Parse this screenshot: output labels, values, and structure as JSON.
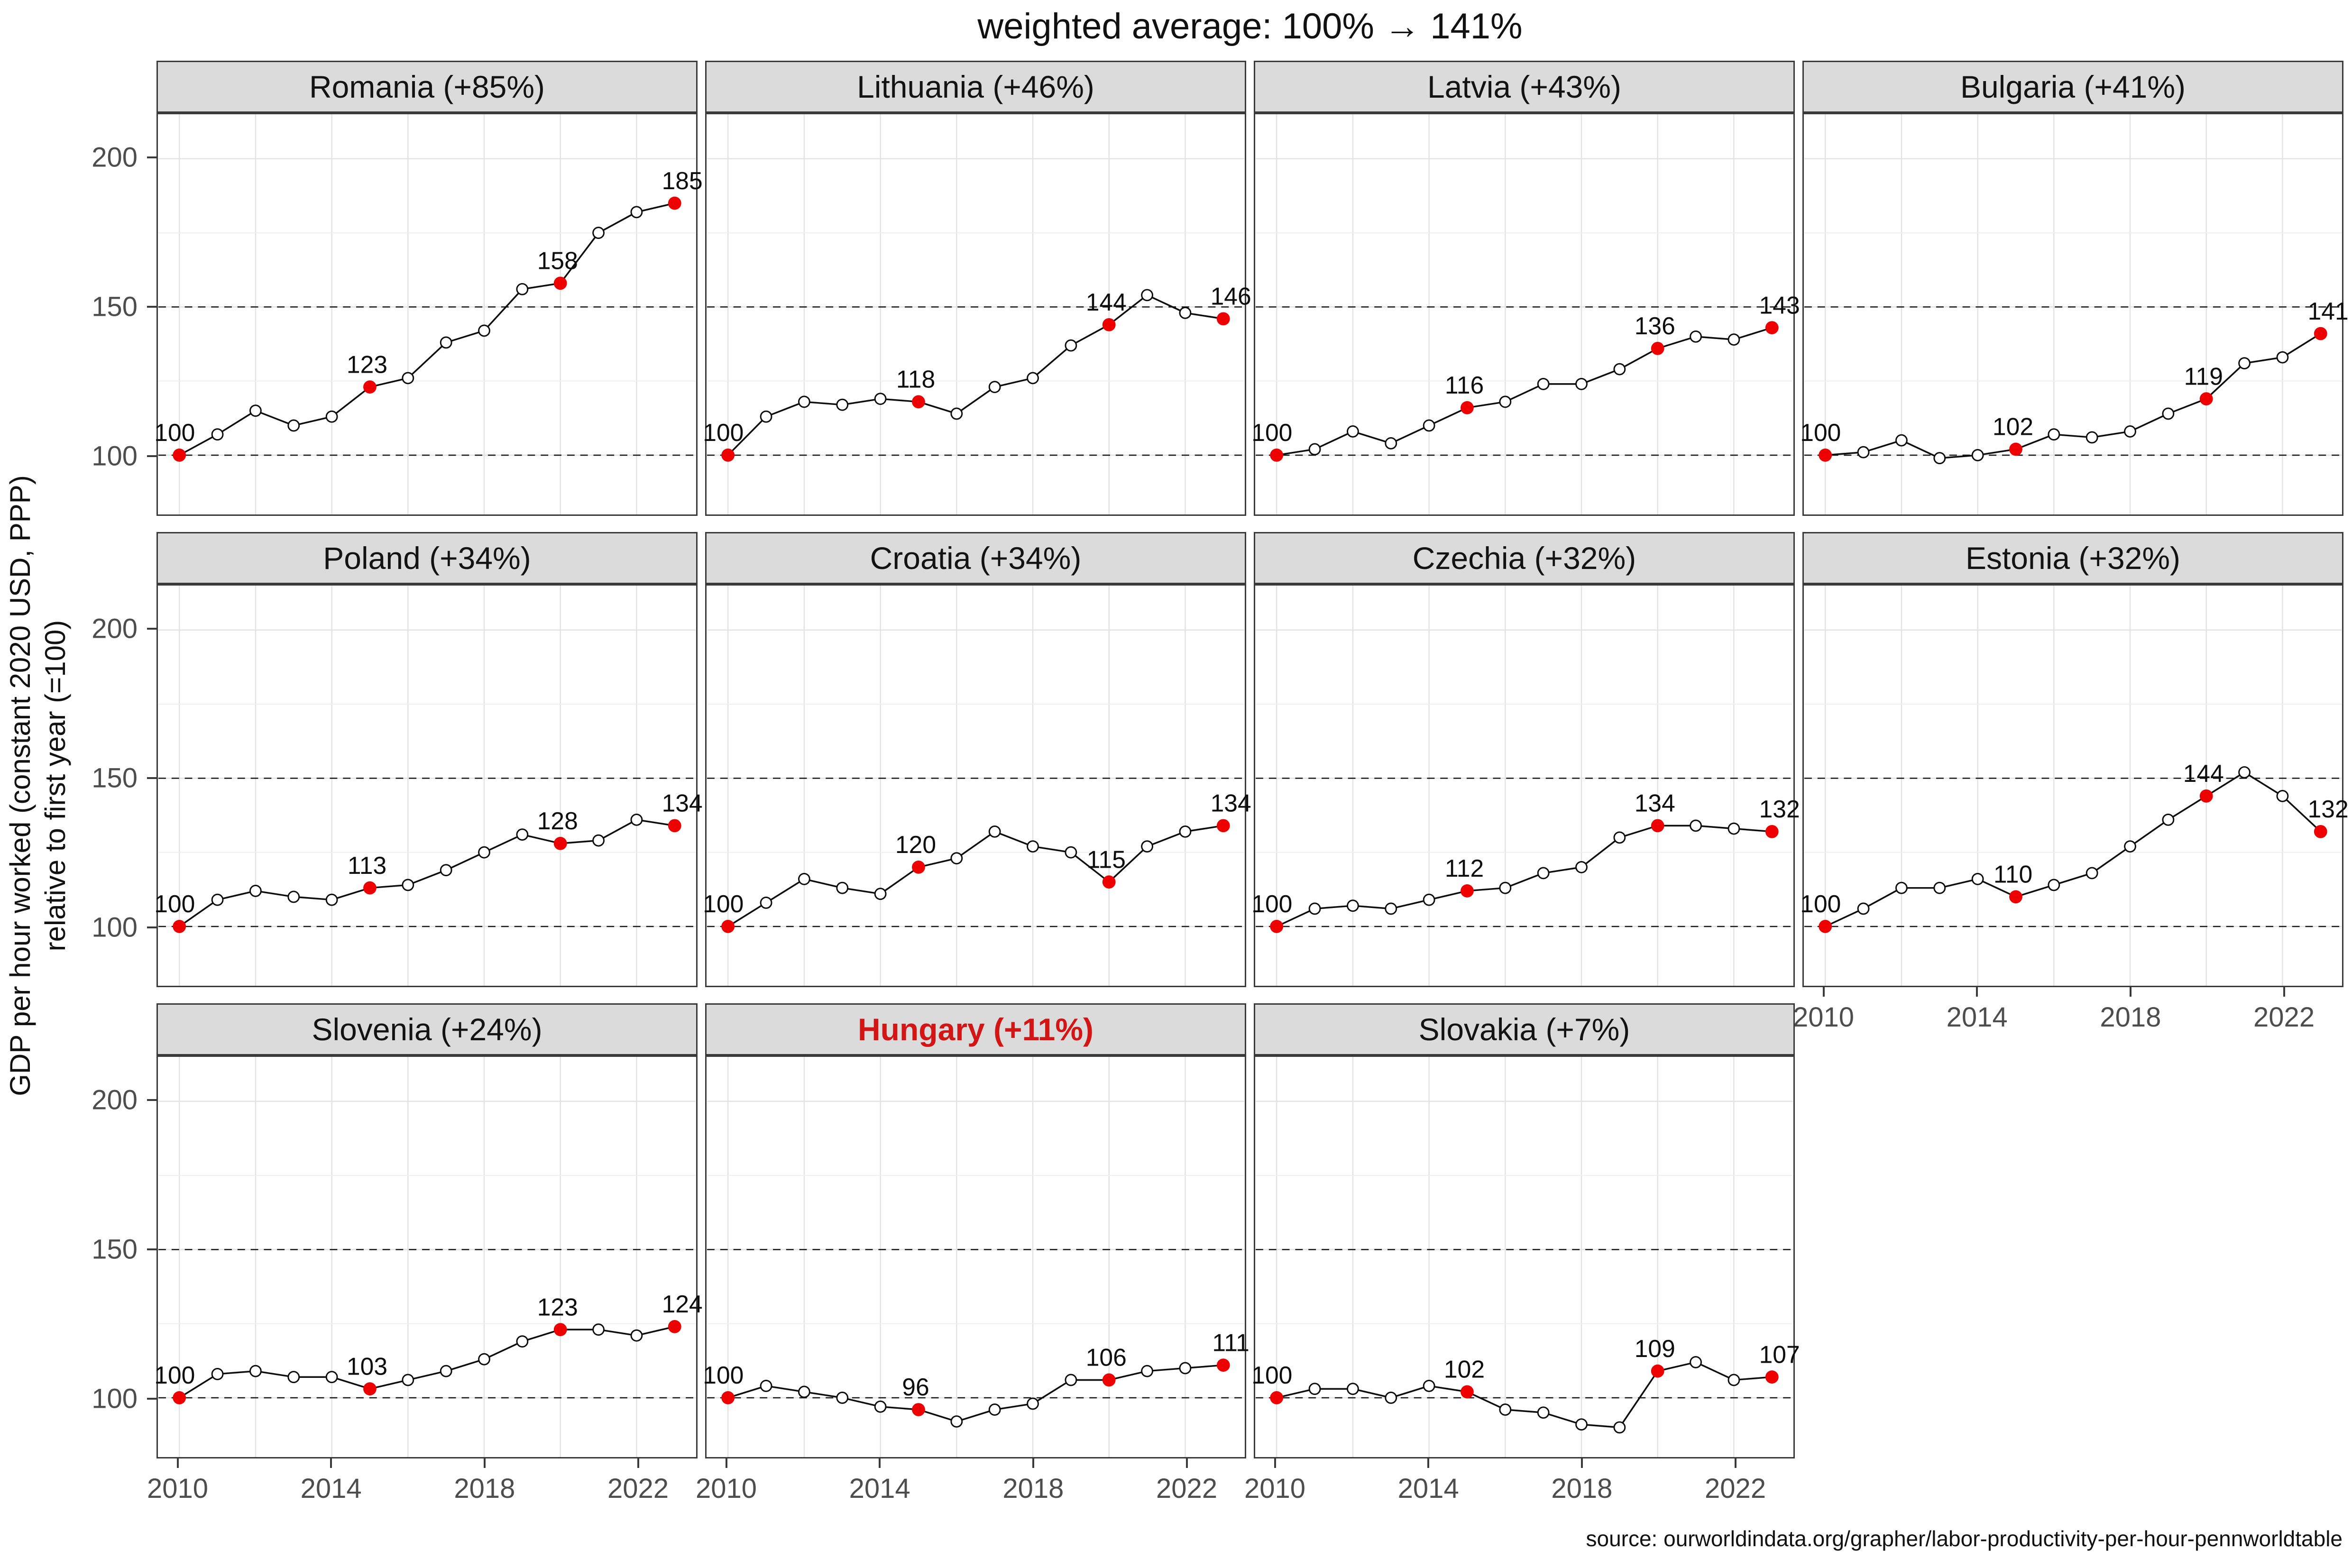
{
  "title": "weighted average: 100% → 141%",
  "y_axis": {
    "label_line1": "GDP per hour worked (constant 2020 USD, PPP)",
    "label_line2": "relative to first year (=100)",
    "tick_labels": [
      "200",
      "150",
      "100"
    ]
  },
  "x_axis": {
    "tick_labels": [
      "2010",
      "2014",
      "2018",
      "2022"
    ]
  },
  "source": "source: ourworldindata.org/grapher/labor-productivity-per-hour-pennworldtable",
  "colors": {
    "highlight_point": "#ef0000",
    "highlight_title": "#d21616",
    "line": "#0d0d0d",
    "strip_bg": "#dbdbdb",
    "grid_major": "#e3e3e3",
    "grid_minor": "#efefef",
    "dashed_reference": "#151515",
    "tick_text": "#4d4d4d"
  },
  "chart_data": {
    "type": "line",
    "x": [
      2010,
      2011,
      2012,
      2013,
      2014,
      2015,
      2016,
      2017,
      2018,
      2019,
      2020,
      2021,
      2022,
      2023
    ],
    "x_ticks": [
      2010,
      2014,
      2018,
      2022
    ],
    "ylim": [
      80,
      215
    ],
    "y_ticks": [
      200,
      150,
      100
    ],
    "grid_minor_y": [
      125,
      175
    ],
    "dashed_reference_lines": [
      100,
      150
    ],
    "marked_years": [
      2010,
      2015,
      2020,
      2023
    ],
    "facets": [
      {
        "title": "Romania (+85%)",
        "highlight": false,
        "values": [
          100,
          107,
          115,
          110,
          113,
          123,
          126,
          138,
          142,
          156,
          158,
          175,
          182,
          185
        ],
        "marked_labels": [
          "100",
          "123",
          "158",
          "185"
        ]
      },
      {
        "title": "Lithuania (+46%)",
        "highlight": false,
        "values": [
          100,
          113,
          118,
          117,
          119,
          118,
          114,
          123,
          126,
          137,
          144,
          154,
          148,
          146
        ],
        "marked_labels": [
          "100",
          "118",
          "144",
          "146"
        ]
      },
      {
        "title": "Latvia (+43%)",
        "highlight": false,
        "values": [
          100,
          102,
          108,
          104,
          110,
          116,
          118,
          124,
          124,
          129,
          136,
          140,
          139,
          143
        ],
        "marked_labels": [
          "100",
          "116",
          "136",
          "143"
        ]
      },
      {
        "title": "Bulgaria (+41%)",
        "highlight": false,
        "values": [
          100,
          101,
          105,
          99,
          100,
          102,
          107,
          106,
          108,
          114,
          119,
          131,
          133,
          141
        ],
        "marked_labels": [
          "100",
          "102",
          "119",
          "141"
        ]
      },
      {
        "title": "Poland (+34%)",
        "highlight": false,
        "values": [
          100,
          109,
          112,
          110,
          109,
          113,
          114,
          119,
          125,
          131,
          128,
          129,
          136,
          134
        ],
        "marked_labels": [
          "100",
          "113",
          "128",
          "134"
        ]
      },
      {
        "title": "Croatia (+34%)",
        "highlight": false,
        "values": [
          100,
          108,
          116,
          113,
          111,
          120,
          123,
          132,
          127,
          125,
          115,
          127,
          132,
          134
        ],
        "marked_labels": [
          "100",
          "120",
          "115",
          "134"
        ]
      },
      {
        "title": "Czechia (+32%)",
        "highlight": false,
        "values": [
          100,
          106,
          107,
          106,
          109,
          112,
          113,
          118,
          120,
          130,
          134,
          134,
          133,
          132
        ],
        "marked_labels": [
          "100",
          "112",
          "134",
          "132"
        ]
      },
      {
        "title": "Estonia (+32%)",
        "highlight": false,
        "values": [
          100,
          106,
          113,
          113,
          116,
          110,
          114,
          118,
          127,
          136,
          144,
          152,
          144,
          132
        ],
        "marked_labels": [
          "100",
          "110",
          "144",
          "132"
        ]
      },
      {
        "title": "Slovenia (+24%)",
        "highlight": false,
        "values": [
          100,
          108,
          109,
          107,
          107,
          103,
          106,
          109,
          113,
          119,
          123,
          123,
          121,
          124
        ],
        "marked_labels": [
          "100",
          "103",
          "123",
          "124"
        ]
      },
      {
        "title": "Hungary (+11%)",
        "highlight": true,
        "values": [
          100,
          104,
          102,
          100,
          97,
          96,
          92,
          96,
          98,
          106,
          106,
          109,
          110,
          111
        ],
        "marked_labels": [
          "100",
          "96",
          "106",
          "111"
        ]
      },
      {
        "title": "Slovakia (+7%)",
        "highlight": false,
        "values": [
          100,
          103,
          103,
          100,
          104,
          102,
          96,
          95,
          91,
          90,
          109,
          112,
          106,
          107
        ],
        "marked_labels": [
          "100",
          "102",
          "109",
          "107"
        ]
      }
    ]
  }
}
